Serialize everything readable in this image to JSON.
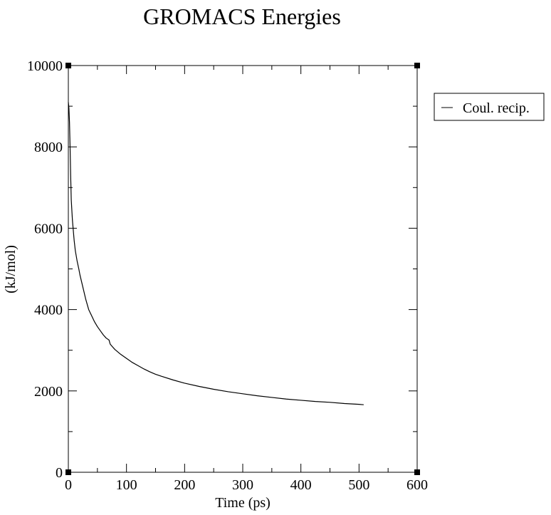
{
  "chart_data": {
    "type": "line",
    "title": "GROMACS Energies",
    "xlabel": "Time (ps)",
    "ylabel": "(kJ/mol)",
    "xlim": [
      0,
      600
    ],
    "ylim": [
      0,
      10000
    ],
    "xticks": [
      0,
      100,
      200,
      300,
      400,
      500,
      600
    ],
    "yticks": [
      0,
      2000,
      4000,
      6000,
      8000,
      10000
    ],
    "x_minor_step": 50,
    "y_minor_step": 1000,
    "grid": false,
    "legend_position": "right",
    "colors": {
      "line": "#000000",
      "axis": "#000000",
      "background": "#ffffff"
    },
    "series": [
      {
        "name": "Coul. recip.",
        "x": [
          0,
          1,
          2,
          3,
          4,
          5,
          7,
          10,
          12,
          15,
          18,
          20,
          25,
          30,
          35,
          40,
          45,
          50,
          55,
          60,
          65,
          70,
          72,
          75,
          80,
          90,
          100,
          110,
          120,
          130,
          140,
          150,
          160,
          180,
          200,
          225,
          250,
          275,
          300,
          325,
          350,
          375,
          400,
          425,
          450,
          475,
          500,
          508
        ],
        "values": [
          9100,
          8950,
          8600,
          8000,
          7300,
          6700,
          6200,
          5700,
          5450,
          5200,
          5000,
          4850,
          4550,
          4250,
          4000,
          3850,
          3700,
          3580,
          3480,
          3380,
          3300,
          3250,
          3150,
          3100,
          3020,
          2900,
          2800,
          2700,
          2620,
          2540,
          2470,
          2410,
          2360,
          2270,
          2190,
          2110,
          2040,
          1980,
          1930,
          1880,
          1840,
          1800,
          1770,
          1740,
          1720,
          1690,
          1670,
          1660
        ]
      }
    ]
  }
}
